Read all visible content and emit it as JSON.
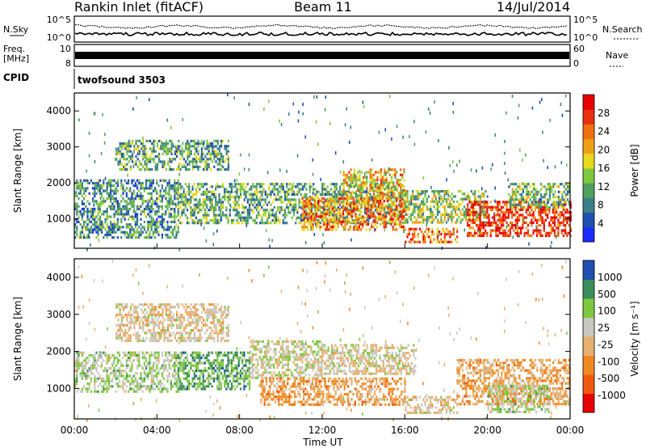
{
  "header": {
    "station": "Rankin Inlet (fitACF)",
    "beam": "Beam 11",
    "date": "14/Jul/2014"
  },
  "top_panels": {
    "nsky_label": "N.Sky",
    "nsky_ticks": [
      "10^5",
      "10^0"
    ],
    "nsearch_label": "N.Search",
    "nsearch_ticks": [
      "10^5",
      "10^0"
    ],
    "freq_label_1": "Freq.",
    "freq_label_2": "[MHz]",
    "freq_ticks": [
      "10",
      "8"
    ],
    "nave_label": "Nave",
    "nave_ticks": [
      "60",
      "0"
    ],
    "cpid_label": "CPID",
    "cpid_value": "twofsound 3503"
  },
  "chart_data": [
    {
      "type": "heatmap",
      "title": "",
      "xlabel": "",
      "ylabel": "Slant Range [km]",
      "xlim": [
        "00:00",
        "00:00"
      ],
      "ylim": [
        180,
        4500
      ],
      "y_ticks": [
        "4000",
        "3000",
        "2000",
        "1000"
      ],
      "colorbar": {
        "label": "Power [dB]",
        "ticks": [
          "28",
          "24",
          "20",
          "16",
          "12",
          "8",
          "4"
        ],
        "range": [
          0,
          30
        ],
        "colors": [
          "#1b2cff",
          "#1f4fb0",
          "#3c7f8a",
          "#50a060",
          "#7ec83f",
          "#e8d81e",
          "#f0a018",
          "#f07010",
          "#e83010",
          "#e80000"
        ]
      },
      "bands": [
        {
          "t0": 0.0,
          "t1": 5.0,
          "r0": 500,
          "r1": 2100,
          "p": 9
        },
        {
          "t0": 2.0,
          "t1": 7.5,
          "r0": 2400,
          "r1": 3200,
          "p": 10
        },
        {
          "t0": 5.0,
          "t1": 16.0,
          "r0": 900,
          "r1": 2000,
          "p": 11
        },
        {
          "t0": 11.0,
          "t1": 16.0,
          "r0": 700,
          "r1": 1600,
          "p": 22
        },
        {
          "t0": 13.0,
          "t1": 16.0,
          "r0": 1600,
          "r1": 2400,
          "p": 18
        },
        {
          "t0": 16.0,
          "t1": 20.0,
          "r0": 900,
          "r1": 1800,
          "p": 14
        },
        {
          "t0": 16.0,
          "t1": 18.5,
          "r0": 350,
          "r1": 750,
          "p": 23
        },
        {
          "t0": 19.0,
          "t1": 24.0,
          "r0": 500,
          "r1": 1500,
          "p": 26
        },
        {
          "t0": 21.0,
          "t1": 24.0,
          "r0": 1300,
          "r1": 2000,
          "p": 12
        }
      ]
    },
    {
      "type": "heatmap",
      "title": "",
      "xlabel": "Time UT",
      "ylabel": "Slant Range [km]",
      "xlim": [
        "00:00",
        "00:00"
      ],
      "ylim": [
        180,
        4500
      ],
      "y_ticks": [
        "4000",
        "3000",
        "2000",
        "1000"
      ],
      "x_ticks": [
        "00:00",
        "04:00",
        "08:00",
        "12:00",
        "16:00",
        "20:00",
        "00:00"
      ],
      "colorbar": {
        "label": "Velocity [m s⁻¹]",
        "ticks": [
          "1000",
          "500",
          "100",
          "25",
          "-25",
          "-100",
          "-500",
          "-1000"
        ],
        "range": [
          -1200,
          1200
        ],
        "colors": [
          "#e80000",
          "#f05a10",
          "#f08a20",
          "#e8b070",
          "#c8c8c0",
          "#7ec83f",
          "#3c8f5a",
          "#1f50b0"
        ]
      },
      "bands": [
        {
          "t0": 0.0,
          "t1": 5.0,
          "r0": 900,
          "r1": 2000,
          "v": 300
        },
        {
          "t0": 2.0,
          "t1": 7.5,
          "r0": 2300,
          "r1": 3300,
          "v": 0
        },
        {
          "t0": 5.0,
          "t1": 8.5,
          "r0": 1000,
          "r1": 2000,
          "v": 600
        },
        {
          "t0": 8.5,
          "t1": 12.0,
          "r0": 1300,
          "r1": 2300,
          "v": 150
        },
        {
          "t0": 9.0,
          "t1": 16.0,
          "r0": 600,
          "r1": 1300,
          "v": -300
        },
        {
          "t0": 12.0,
          "t1": 16.5,
          "r0": 1400,
          "r1": 2200,
          "v": 60
        },
        {
          "t0": 16.0,
          "t1": 18.5,
          "r0": 350,
          "r1": 800,
          "v": 0
        },
        {
          "t0": 18.5,
          "t1": 24.0,
          "r0": 600,
          "r1": 1800,
          "v": -300
        },
        {
          "t0": 20.0,
          "t1": 23.0,
          "r0": 400,
          "r1": 1100,
          "v": 300
        }
      ]
    }
  ]
}
